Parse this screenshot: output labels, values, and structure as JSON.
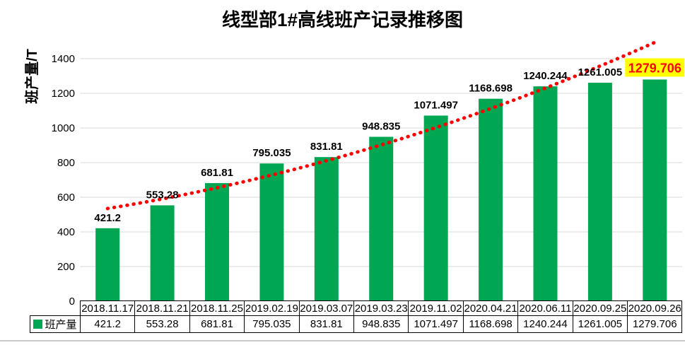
{
  "chart_data": {
    "type": "bar",
    "title": "线型部1#高线班产记录推移图",
    "ylabel": "班产量/T",
    "categories": [
      "2018.11.17",
      "2018.11.21",
      "2018.11.25",
      "2019.02.19",
      "2019.03.07",
      "2019.03.23",
      "2019.11.02",
      "2020.04.21",
      "2020.06.11",
      "2020.09.25",
      "2020.09.26"
    ],
    "series": [
      {
        "name": "班产量",
        "values": [
          421.2,
          553.28,
          681.81,
          795.035,
          831.81,
          948.835,
          1071.497,
          1168.698,
          1240.244,
          1261.005,
          1279.706
        ]
      }
    ],
    "data_labels": [
      "421.2",
      "553.28",
      "681.81",
      "795.035",
      "831.81",
      "948.835",
      "1071.497",
      "1168.698",
      "1240.244",
      "1261.005",
      "1279.706"
    ],
    "ylim": [
      0,
      1400
    ],
    "yticks": [
      0,
      200,
      400,
      600,
      800,
      1000,
      1200,
      1400
    ],
    "grid": true,
    "legend_label": "班产量",
    "legend_position": "data-table-left",
    "colors": {
      "bar": "#00A651",
      "trendline": "#FF0000",
      "gridline": "#D9D9D9",
      "label_text": "#000000",
      "highlight_text": "#FF0000",
      "highlight_background": "#FFFF00",
      "table_border": "#000000"
    },
    "trendline": {
      "style": "dotted",
      "color": "#FF0000",
      "start_value": 535,
      "mid_value": 902,
      "end_value": 1494
    },
    "highlight_last_label": true,
    "data_table_shown": true
  }
}
